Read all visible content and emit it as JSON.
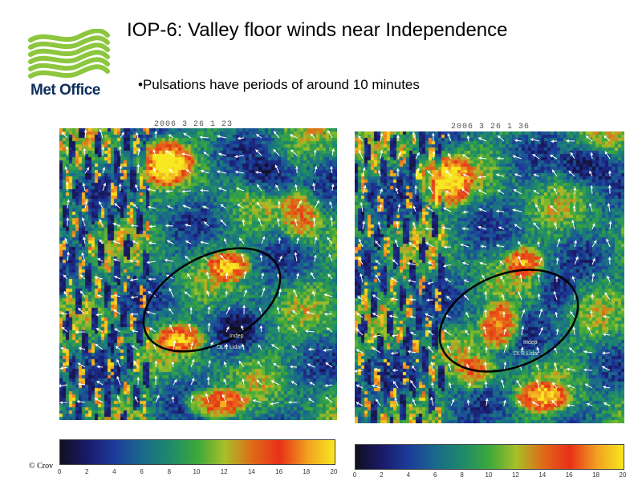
{
  "slide": {
    "title": "IOP-6: Valley floor winds near Independence",
    "bullet": "•Pulsations have periods of around 10 minutes",
    "copyright": "© Crov"
  },
  "logo": {
    "text": "Met Office",
    "icon": "met-office-wave-logo",
    "color": "#8dc63f"
  },
  "panels": [
    {
      "timestamp": "2006   3 26   1 23",
      "site_label_top": "Indep",
      "site_label_bottom": "DLR Lidar"
    },
    {
      "timestamp": "2006   3 26   1 36",
      "site_label_top": "Indep",
      "site_label_bottom": "DLR Lidar"
    }
  ],
  "colorbar": {
    "ticks": [
      "0",
      "2",
      "4",
      "6",
      "8",
      "10",
      "12",
      "14",
      "16",
      "18",
      "20"
    ],
    "colors": [
      "#101020",
      "#1a1a6a",
      "#1c3c9c",
      "#1a6a8a",
      "#1e8a6a",
      "#3ca83a",
      "#a8c028",
      "#e06a18",
      "#e83018",
      "#f0a020",
      "#f8e820"
    ]
  }
}
